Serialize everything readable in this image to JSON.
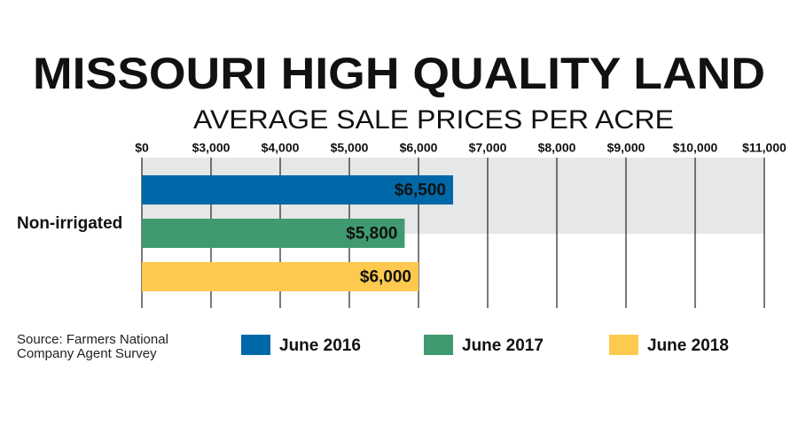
{
  "chart_data": {
    "type": "hbar",
    "title": "MISSOURI HIGH QUALITY LAND",
    "subtitle": "AVERAGE SALE PRICES PER ACRE",
    "categories": [
      "Non-irrigated"
    ],
    "series": [
      {
        "name": "June 2016",
        "color": "#0068a8",
        "values": [
          6500
        ],
        "value_labels": [
          "$6,500"
        ]
      },
      {
        "name": "June 2017",
        "color": "#3f9a6f",
        "values": [
          5800
        ],
        "value_labels": [
          "$5,800"
        ]
      },
      {
        "name": "June 2018",
        "color": "#fdc94f",
        "values": [
          6000
        ],
        "value_labels": [
          "$6,000"
        ]
      }
    ],
    "xlim": [
      0,
      11000
    ],
    "xticks": [
      {
        "value": 0,
        "label": "$0"
      },
      {
        "value": 3000,
        "label": "$3,000"
      },
      {
        "value": 4000,
        "label": "$4,000"
      },
      {
        "value": 5000,
        "label": "$5,000"
      },
      {
        "value": 6000,
        "label": "$6,000"
      },
      {
        "value": 7000,
        "label": "$7,000"
      },
      {
        "value": 8000,
        "label": "$8,000"
      },
      {
        "value": 9000,
        "label": "$9,000"
      },
      {
        "value": 10000,
        "label": "$10,000"
      },
      {
        "value": 11000,
        "label": "$11,000"
      }
    ],
    "grid": true,
    "source": "Source: Farmers National Company Agent Survey"
  }
}
